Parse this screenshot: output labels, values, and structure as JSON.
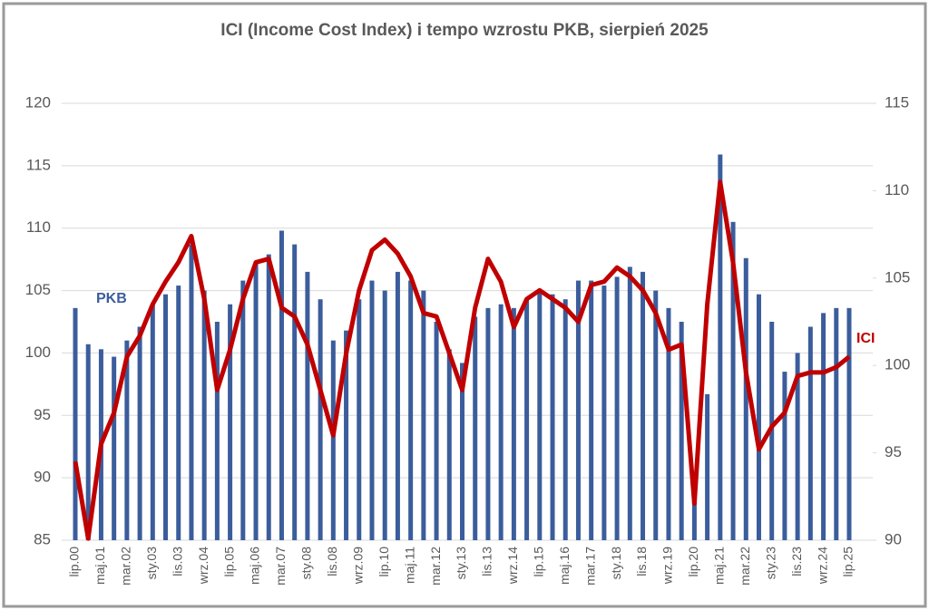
{
  "chart_data": {
    "type": "bar-line",
    "title": "ICI (Income Cost Index) i tempo wzrostu PKB, sierpień 2025",
    "categories": [
      "lip.00",
      null,
      "maj.01",
      null,
      "mar.02",
      null,
      "sty.03",
      null,
      "lis.03",
      null,
      "wrz.04",
      null,
      "lip.05",
      null,
      "maj.06",
      null,
      "mar.07",
      null,
      "sty.08",
      null,
      "lis.08",
      null,
      "wrz.09",
      null,
      "lip.10",
      null,
      "maj.11",
      null,
      "mar.12",
      null,
      "sty.13",
      null,
      "lis.13",
      null,
      "wrz.14",
      null,
      "lip.15",
      null,
      "maj.16",
      null,
      "mar.17",
      null,
      "sty.18",
      null,
      "lis.18",
      null,
      "wrz.19",
      null,
      "lip.20",
      null,
      "maj.21",
      null,
      "mar.22",
      null,
      "sty.23",
      null,
      "lis.23",
      null,
      "wrz.24",
      null,
      "lip.25"
    ],
    "series": [
      {
        "name": "PKB",
        "type": "bar",
        "color": "#3b5d9c",
        "values": [
          103.6,
          100.7,
          100.3,
          99.7,
          101.0,
          102.1,
          103.9,
          104.7,
          105.4,
          108.7,
          105.0,
          102.5,
          103.9,
          105.8,
          107.2,
          107.9,
          109.8,
          108.7,
          106.5,
          104.3,
          101.0,
          101.8,
          104.3,
          105.8,
          105.0,
          106.5,
          105.8,
          105.0,
          102.5,
          100.3,
          99.2,
          102.9,
          103.6,
          103.9,
          103.6,
          104.3,
          105.0,
          104.7,
          104.3,
          105.8,
          105.8,
          105.4,
          106.1,
          106.9,
          106.5,
          105.0,
          103.6,
          102.5,
          88.7,
          96.7,
          115.9,
          110.5,
          107.6,
          104.7,
          102.5,
          98.5,
          100.0,
          102.1,
          103.2,
          103.6,
          103.6
        ]
      },
      {
        "name": "ICI",
        "type": "line",
        "axis": "y2",
        "color": "#c00000",
        "values": [
          94.5,
          90.1,
          95.5,
          97.3,
          100.5,
          101.7,
          103.5,
          104.8,
          105.9,
          107.4,
          103.8,
          98.6,
          100.9,
          103.8,
          105.9,
          106.1,
          103.3,
          102.8,
          101.2,
          98.6,
          96.0,
          100.7,
          104.3,
          106.6,
          107.2,
          106.4,
          105.1,
          103.0,
          102.8,
          100.7,
          98.6,
          103.3,
          106.1,
          104.8,
          102.2,
          103.8,
          104.3,
          103.8,
          103.3,
          102.5,
          104.6,
          104.8,
          105.6,
          105.1,
          104.3,
          103.0,
          100.9,
          101.2,
          92.1,
          103.5,
          110.5,
          105.9,
          99.6,
          95.2,
          96.5,
          97.3,
          99.4,
          99.6,
          99.6,
          99.9,
          100.5
        ]
      }
    ],
    "ylim": [
      85,
      120
    ],
    "yticks": [
      85,
      90,
      95,
      100,
      105,
      110,
      115,
      120
    ],
    "y2lim": [
      90,
      115
    ],
    "y2ticks": [
      90,
      95,
      100,
      105,
      110,
      115
    ],
    "grid": true
  }
}
